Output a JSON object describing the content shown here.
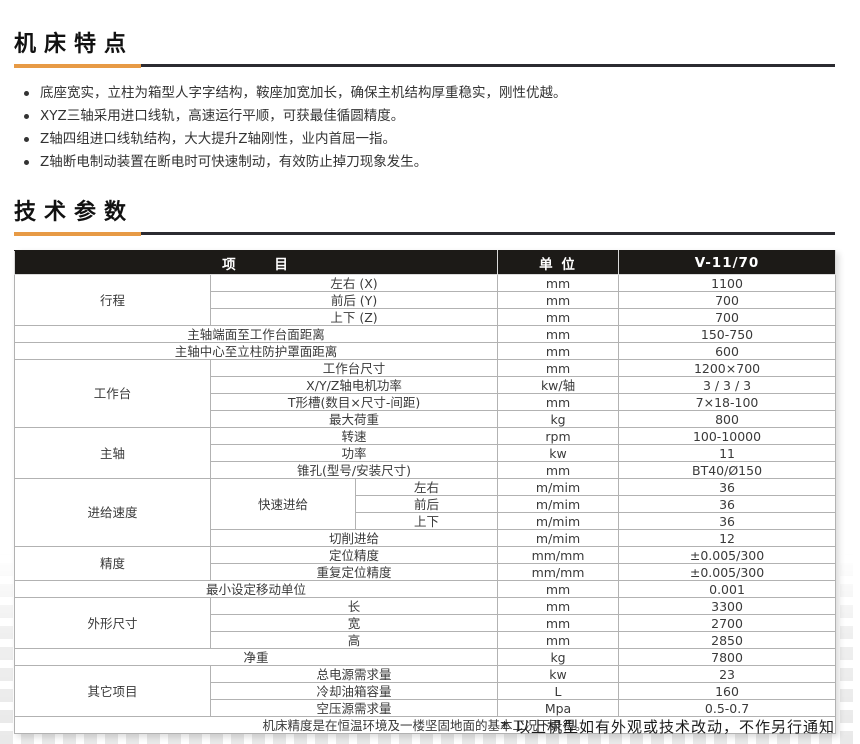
{
  "colors": {
    "accent_orange": "#E79A45",
    "rule_dark": "#2B2B31",
    "table_header_bg": "#1C1A17",
    "table_border": "#B2B2B2"
  },
  "features": {
    "title": "机床特点",
    "bullets": [
      "底座宽实，立柱为箱型人字字结构，鞍座加宽加长，确保主机结构厚重稳实，刚性优越。",
      "XYZ三轴采用进口线轨，高速运行平顺，可获最佳循圆精度。",
      "Z轴四组进口线轨结构，大大提升Z轴刚性，业内首屈一指。",
      "Z轴断电制动装置在断电时可快速制动，有效防止掉刀现象发生。"
    ]
  },
  "specs": {
    "title": "技术参数"
  },
  "table": {
    "header": {
      "item": "项 目",
      "unit": "单 位",
      "model": "V-11/70"
    },
    "rows": [
      [
        "行程",
        "左右  (X)",
        "mm",
        "1100"
      ],
      [
        "前后  (Y)",
        "mm",
        "700"
      ],
      [
        "上下  (Z)",
        "mm",
        "700"
      ],
      [
        "主轴端面至工作台面距离",
        "mm",
        "150-750"
      ],
      [
        "主轴中心至立柱防护罩面距离",
        "mm",
        "600"
      ],
      [
        "工作台",
        "工作台尺寸",
        "mm",
        "1200×700"
      ],
      [
        "X/Y/Z轴电机功率",
        "kw/轴",
        "3 / 3 / 3"
      ],
      [
        "T形槽(数目×尺寸-间距)",
        "mm",
        "7×18-100"
      ],
      [
        "最大荷重",
        "kg",
        "800"
      ],
      [
        "主轴",
        "转速",
        "rpm",
        "100-10000"
      ],
      [
        "功率",
        "kw",
        "11"
      ],
      [
        "锥孔(型号/安装尺寸)",
        "mm",
        "BT40/Ø150"
      ],
      [
        "进给速度",
        "快速进给",
        "左右",
        "m/mim",
        "36"
      ],
      [
        "前后",
        "m/mim",
        "36"
      ],
      [
        "上下",
        "m/mim",
        "36"
      ],
      [
        "切削进给",
        "m/mim",
        "12"
      ],
      [
        "精度",
        "定位精度",
        "mm/mm",
        "±0.005/300"
      ],
      [
        "重复定位精度",
        "mm/mm",
        "±0.005/300"
      ],
      [
        "最小设定移动单位",
        "mm",
        "0.001"
      ],
      [
        "外形尺寸",
        "长",
        "mm",
        "3300"
      ],
      [
        "宽",
        "mm",
        "2700"
      ],
      [
        "高",
        "mm",
        "2850"
      ],
      [
        "净重",
        "kg",
        "7800"
      ],
      [
        "其它项目",
        "总电源需求量",
        "kw",
        "23"
      ],
      [
        "冷却油箱容量",
        "L",
        "160"
      ],
      [
        "空压源需求量",
        "Mpa",
        "0.5-0.7"
      ]
    ],
    "note": "机床精度是在恒温环境及一楼坚固地面的基本工况下录得。"
  },
  "footnote": "* 以上机型如有外观或技术改动，不作另行通知"
}
